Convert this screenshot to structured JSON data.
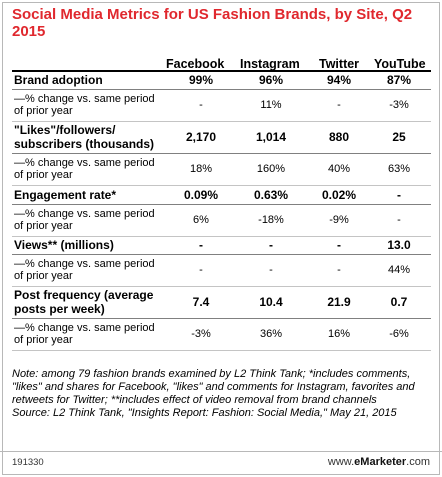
{
  "chart_data": {
    "type": "table",
    "title": "Social Media Metrics for US Fashion Brands, by Site, Q2 2015",
    "columns": [
      "Facebook",
      "Instagram",
      "Twitter",
      "YouTube"
    ],
    "rows": [
      {
        "label": "Brand adoption",
        "kind": "metric",
        "values": [
          "99%",
          "96%",
          "94%",
          "87%"
        ]
      },
      {
        "label": "—% change vs. same period of prior year",
        "kind": "change",
        "values": [
          "-",
          "11%",
          "-",
          "-3%"
        ]
      },
      {
        "label": "\"Likes\"/followers/ subscribers (thousands)",
        "kind": "metric",
        "values": [
          "2,170",
          "1,014",
          "880",
          "25"
        ]
      },
      {
        "label": "—% change vs. same period of prior year",
        "kind": "change",
        "values": [
          "18%",
          "160%",
          "40%",
          "63%"
        ]
      },
      {
        "label": "Engagement rate*",
        "kind": "metric",
        "values": [
          "0.09%",
          "0.63%",
          "0.02%",
          "-"
        ]
      },
      {
        "label": "—% change vs. same period of prior year",
        "kind": "change",
        "values": [
          "6%",
          "-18%",
          "-9%",
          "-"
        ]
      },
      {
        "label": "Views** (millions)",
        "kind": "metric",
        "values": [
          "-",
          "-",
          "-",
          "13.0"
        ]
      },
      {
        "label": "—% change vs. same period of prior year",
        "kind": "change",
        "values": [
          "-",
          "-",
          "-",
          "44%"
        ]
      },
      {
        "label": "Post frequency (average posts per week)",
        "kind": "metric",
        "values": [
          "7.4",
          "10.4",
          "21.9",
          "0.7"
        ]
      },
      {
        "label": "—% change vs. same period of prior year",
        "kind": "change",
        "values": [
          "-3%",
          "36%",
          "16%",
          "-6%"
        ]
      }
    ]
  },
  "note": "Note: among 79 fashion brands examined by L2 Think Tank; *includes comments, \"likes\" and shares for Facebook, \"likes\" and comments for Instagram, favorites and retweets for Twitter; **includes effect of video removal from brand channels",
  "source": "Source: L2 Think Tank, \"Insights Report: Fashion: Social Media,\" May 21, 2015",
  "footer": {
    "id": "191330",
    "brand_prefix": "www.",
    "brand_bold": "eMarketer",
    "brand_suffix": ".com"
  },
  "colors": {
    "title": "#e0282e"
  }
}
